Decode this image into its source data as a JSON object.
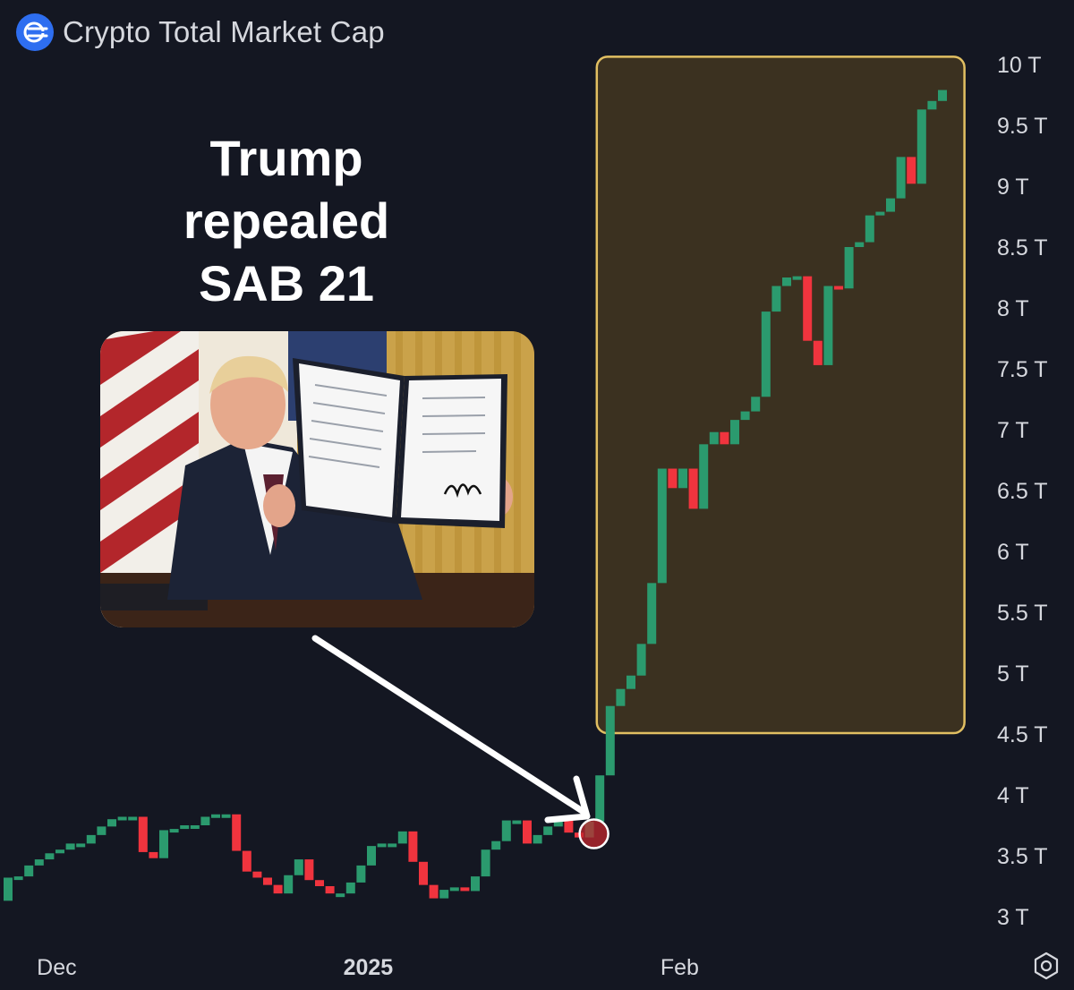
{
  "header": {
    "title": "Crypto Total Market Cap",
    "logo_icon": "equals-network-icon"
  },
  "annotation": {
    "line1": "Trump",
    "line2": "repealed",
    "line3": "SAB 21"
  },
  "photo": {
    "subject": "president-holding-signed-order-photo"
  },
  "colors": {
    "up": "#2b9a6e",
    "down": "#f0343e",
    "highlight_fill": "#3b3120",
    "highlight_border": "#e1bf62",
    "marker": "#c1272d"
  },
  "settings_icon": "gear-icon",
  "chart_data": {
    "type": "candlestick",
    "title": "Crypto Total Market Cap",
    "y_unit": "T",
    "ylim": [
      3,
      10
    ],
    "y_ticks": [
      "3 T",
      "3.5 T",
      "4 T",
      "4.5 T",
      "5 T",
      "5.5 T",
      "6 T",
      "6.5 T",
      "7 T",
      "7.5 T",
      "8 T",
      "8.5 T",
      "9 T",
      "9.5 T",
      "10 T"
    ],
    "x_ticks": [
      {
        "label": "Dec",
        "index": 4
      },
      {
        "label": "2025",
        "index": 34,
        "bold": true
      },
      {
        "label": "Feb",
        "index": 64
      }
    ],
    "candles": [
      {
        "o": 3.13,
        "c": 3.32
      },
      {
        "o": 3.32,
        "c": 3.33
      },
      {
        "o": 3.33,
        "c": 3.42
      },
      {
        "o": 3.42,
        "c": 3.47
      },
      {
        "o": 3.47,
        "c": 3.52
      },
      {
        "o": 3.52,
        "c": 3.55
      },
      {
        "o": 3.55,
        "c": 3.6
      },
      {
        "o": 3.6,
        "c": 3.6
      },
      {
        "o": 3.6,
        "c": 3.67
      },
      {
        "o": 3.67,
        "c": 3.74
      },
      {
        "o": 3.74,
        "c": 3.8
      },
      {
        "o": 3.8,
        "c": 3.82
      },
      {
        "o": 3.82,
        "c": 3.82
      },
      {
        "o": 3.82,
        "c": 3.53
      },
      {
        "o": 3.53,
        "c": 3.48
      },
      {
        "o": 3.48,
        "c": 3.71
      },
      {
        "o": 3.71,
        "c": 3.72
      },
      {
        "o": 3.72,
        "c": 3.75
      },
      {
        "o": 3.75,
        "c": 3.75
      },
      {
        "o": 3.75,
        "c": 3.82
      },
      {
        "o": 3.82,
        "c": 3.84
      },
      {
        "o": 3.84,
        "c": 3.84
      },
      {
        "o": 3.84,
        "c": 3.54
      },
      {
        "o": 3.54,
        "c": 3.37
      },
      {
        "o": 3.37,
        "c": 3.32
      },
      {
        "o": 3.32,
        "c": 3.26
      },
      {
        "o": 3.26,
        "c": 3.19
      },
      {
        "o": 3.19,
        "c": 3.34
      },
      {
        "o": 3.34,
        "c": 3.47
      },
      {
        "o": 3.47,
        "c": 3.3
      },
      {
        "o": 3.3,
        "c": 3.25
      },
      {
        "o": 3.25,
        "c": 3.19
      },
      {
        "o": 3.19,
        "c": 3.19
      },
      {
        "o": 3.19,
        "c": 3.28
      },
      {
        "o": 3.28,
        "c": 3.42
      },
      {
        "o": 3.42,
        "c": 3.58
      },
      {
        "o": 3.58,
        "c": 3.6
      },
      {
        "o": 3.6,
        "c": 3.6
      },
      {
        "o": 3.6,
        "c": 3.7
      },
      {
        "o": 3.7,
        "c": 3.45
      },
      {
        "o": 3.45,
        "c": 3.26
      },
      {
        "o": 3.26,
        "c": 3.15
      },
      {
        "o": 3.15,
        "c": 3.22
      },
      {
        "o": 3.22,
        "c": 3.24
      },
      {
        "o": 3.24,
        "c": 3.21
      },
      {
        "o": 3.21,
        "c": 3.33
      },
      {
        "o": 3.33,
        "c": 3.55
      },
      {
        "o": 3.55,
        "c": 3.62
      },
      {
        "o": 3.62,
        "c": 3.79
      },
      {
        "o": 3.79,
        "c": 3.79
      },
      {
        "o": 3.79,
        "c": 3.6
      },
      {
        "o": 3.6,
        "c": 3.67
      },
      {
        "o": 3.67,
        "c": 3.74
      },
      {
        "o": 3.74,
        "c": 3.79
      },
      {
        "o": 3.79,
        "c": 3.69
      },
      {
        "o": 3.69,
        "c": 3.65
      },
      {
        "o": 3.65,
        "c": 3.78
      },
      {
        "o": 3.78,
        "c": 4.16
      },
      {
        "o": 4.16,
        "c": 4.73
      },
      {
        "o": 4.73,
        "c": 4.87
      },
      {
        "o": 4.87,
        "c": 4.98
      },
      {
        "o": 4.98,
        "c": 5.24
      },
      {
        "o": 5.24,
        "c": 5.74
      },
      {
        "o": 5.74,
        "c": 6.68
      },
      {
        "o": 6.68,
        "c": 6.52
      },
      {
        "o": 6.52,
        "c": 6.68
      },
      {
        "o": 6.68,
        "c": 6.35
      },
      {
        "o": 6.35,
        "c": 6.88
      },
      {
        "o": 6.88,
        "c": 6.98
      },
      {
        "o": 6.98,
        "c": 6.88
      },
      {
        "o": 6.88,
        "c": 7.08
      },
      {
        "o": 7.08,
        "c": 7.15
      },
      {
        "o": 7.15,
        "c": 7.27
      },
      {
        "o": 7.27,
        "c": 7.97
      },
      {
        "o": 7.97,
        "c": 8.18
      },
      {
        "o": 8.18,
        "c": 8.25
      },
      {
        "o": 8.25,
        "c": 8.26
      },
      {
        "o": 8.26,
        "c": 7.73
      },
      {
        "o": 7.73,
        "c": 7.53
      },
      {
        "o": 7.53,
        "c": 8.18
      },
      {
        "o": 8.18,
        "c": 8.16
      },
      {
        "o": 8.16,
        "c": 8.5
      },
      {
        "o": 8.5,
        "c": 8.54
      },
      {
        "o": 8.54,
        "c": 8.76
      },
      {
        "o": 8.76,
        "c": 8.79
      },
      {
        "o": 8.79,
        "c": 8.9
      },
      {
        "o": 8.9,
        "c": 9.24
      },
      {
        "o": 9.24,
        "c": 9.02
      },
      {
        "o": 9.02,
        "c": 9.63
      },
      {
        "o": 9.63,
        "c": 9.7
      },
      {
        "o": 9.7,
        "c": 9.79
      }
    ],
    "highlight_range": {
      "start_index": 58,
      "end_index": 91,
      "ymin": 4.5,
      "ymax": 10.1
    },
    "event_marker_index": 56,
    "grid": false,
    "legend": "none"
  }
}
